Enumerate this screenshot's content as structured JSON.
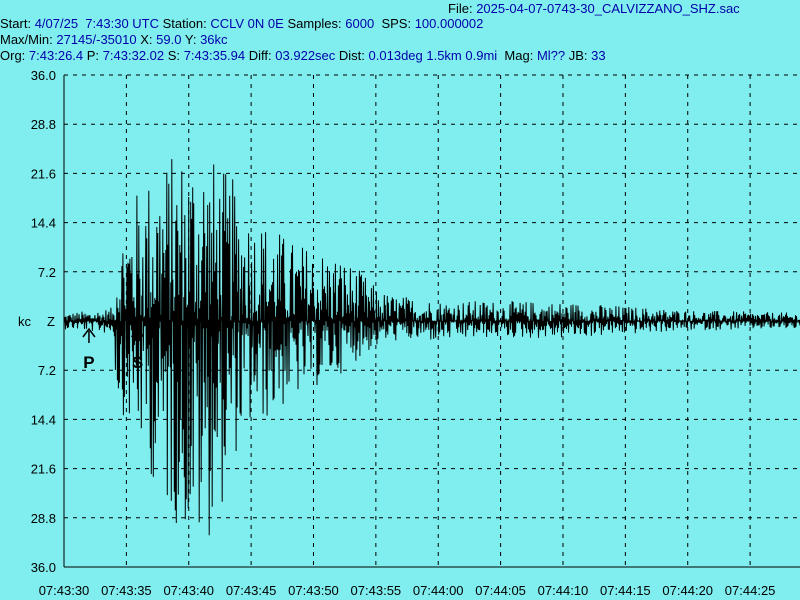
{
  "header": {
    "file_label": "File:",
    "file_name": "2025-04-07-0743-30_CALVIZZANO_SHZ.sac",
    "start_label": "Start:",
    "start_value": "4/07/25  7:43:30 UTC",
    "station_label": "Station:",
    "station_value": "CCLV 0N 0E",
    "samples_label": "Samples:",
    "samples_value": "6000",
    "sps_label": "SPS:",
    "sps_value": "100.000002",
    "maxmin_label": "Max/Min:",
    "maxmin_value": "27145/-35010",
    "x_label": "X:",
    "x_value": "59.0",
    "y_label": "Y:",
    "y_value": "36kc",
    "org_label": "Org:",
    "org_value": "7:43:26.4",
    "p_label": "P:",
    "p_value": "7:43:32.02",
    "s_label": "S:",
    "s_value": "7:43:35.94",
    "diff_label": "Diff:",
    "diff_value": "03.922sec",
    "dist_label": "Dist:",
    "dist_value": "0.013deg 1.5km 0.9mi",
    "mag_label": "Mag:",
    "mag_value": "Ml??",
    "jb_label": "JB:",
    "jb_value": "33"
  },
  "chart_data": {
    "type": "line",
    "units_label": "kc",
    "channel_label": "Z",
    "y_tick_labels": [
      "36.0",
      "28.8",
      "21.6",
      "14.4",
      "7.2",
      "7.2",
      "14.4",
      "21.6",
      "28.8",
      "36.0"
    ],
    "y_tick_values": [
      36.0,
      28.8,
      21.6,
      14.4,
      7.2,
      -7.2,
      -14.4,
      -21.6,
      -28.8,
      -36.0
    ],
    "ylim": [
      -36.0,
      36.0
    ],
    "x_tick_labels": [
      "07:43:30",
      "07:43:35",
      "07:43:40",
      "07:43:45",
      "07:43:50",
      "07:43:55",
      "07:44:00",
      "07:44:05",
      "07:44:10",
      "07:44:15",
      "07:44:20",
      "07:44:25"
    ],
    "x_tick_seconds": [
      0,
      5,
      10,
      15,
      20,
      25,
      30,
      35,
      40,
      45,
      50,
      55
    ],
    "xlim_seconds": [
      0,
      59.0
    ],
    "grid": true,
    "picks": [
      {
        "label": "P",
        "time_s": 2.0
      },
      {
        "label": "S",
        "time_s": 5.9
      }
    ],
    "envelope": {
      "time_s": [
        0,
        2,
        4,
        4.2,
        6,
        8,
        10,
        11,
        12,
        13,
        14,
        15,
        17,
        18,
        20,
        22,
        24,
        25,
        26,
        30,
        34,
        40,
        50,
        59
      ],
      "max_kc": [
        1.2,
        1.5,
        2.0,
        12,
        20,
        24,
        26,
        27.1,
        24,
        22,
        20,
        16,
        14,
        12,
        11,
        10,
        7,
        5,
        4,
        3,
        3,
        2.8,
        1.6,
        1.2
      ],
      "min_kc": [
        -1.2,
        -1.5,
        -2.0,
        -12,
        -18,
        -28,
        -32,
        -35.0,
        -30,
        -26,
        -18,
        -16,
        -14,
        -12,
        -10,
        -8,
        -5,
        -4,
        -3,
        -3,
        -2.5,
        -2.6,
        -1.4,
        -1.2
      ]
    },
    "line_color": "#000000",
    "background_color": "#80eeee",
    "grid_color": "#000000"
  }
}
